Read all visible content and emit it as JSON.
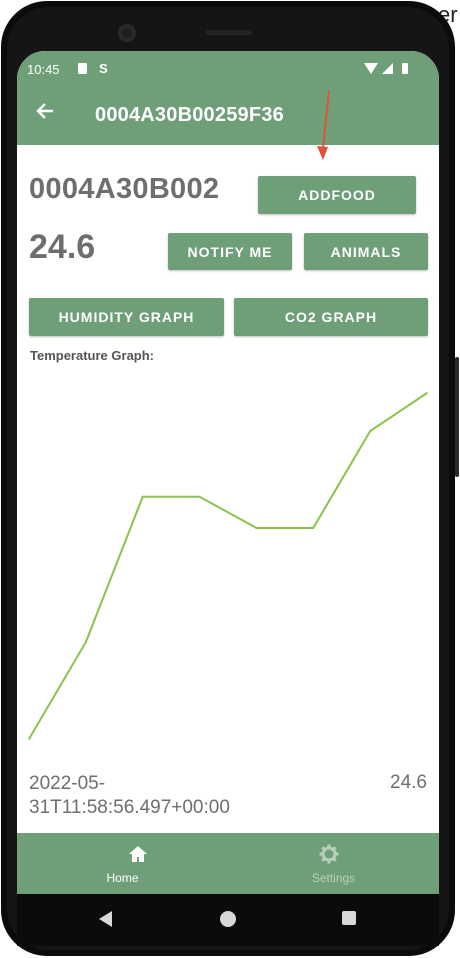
{
  "status_bar": {
    "time": "10:45",
    "icons": [
      "sd-card-icon",
      "s-icon",
      "wifi-icon",
      "signal-icon",
      "battery-icon"
    ]
  },
  "app_bar": {
    "back_icon": "arrow-left-icon",
    "title": "0004A30B00259F36"
  },
  "device": {
    "id_display": "0004A30B002",
    "temperature": "24.6"
  },
  "buttons": {
    "addfood": "ADDFOOD",
    "notify_me": "NOTIFY ME",
    "animals": "ANIMALS",
    "humidity_graph": "HUMIDITY GRAPH",
    "co2_graph": "CO2 GRAPH"
  },
  "graph": {
    "label": "Temperature Graph:"
  },
  "chart_data": {
    "type": "line",
    "title": "",
    "xlabel": "",
    "ylabel": "",
    "series": [
      {
        "values": [
          0.0,
          0.28,
          0.7,
          0.7,
          0.61,
          0.61,
          0.89,
          1.0
        ]
      }
    ],
    "color": "#8bc34a",
    "grid": false
  },
  "footer": {
    "timestamp": "2022-05-31T11:58:56.497+00:00",
    "value": "24.6"
  },
  "bottom_nav": {
    "items": [
      {
        "label": "Home",
        "icon": "home-icon",
        "active": true
      },
      {
        "label": "Settings",
        "icon": "gear-icon",
        "active": false
      }
    ]
  },
  "edge_text": "er",
  "colors": {
    "primary": "#6f9f79",
    "text_gray": "#6e6e6e",
    "line": "#8bc34a",
    "annotation_arrow": "#e0503a"
  }
}
